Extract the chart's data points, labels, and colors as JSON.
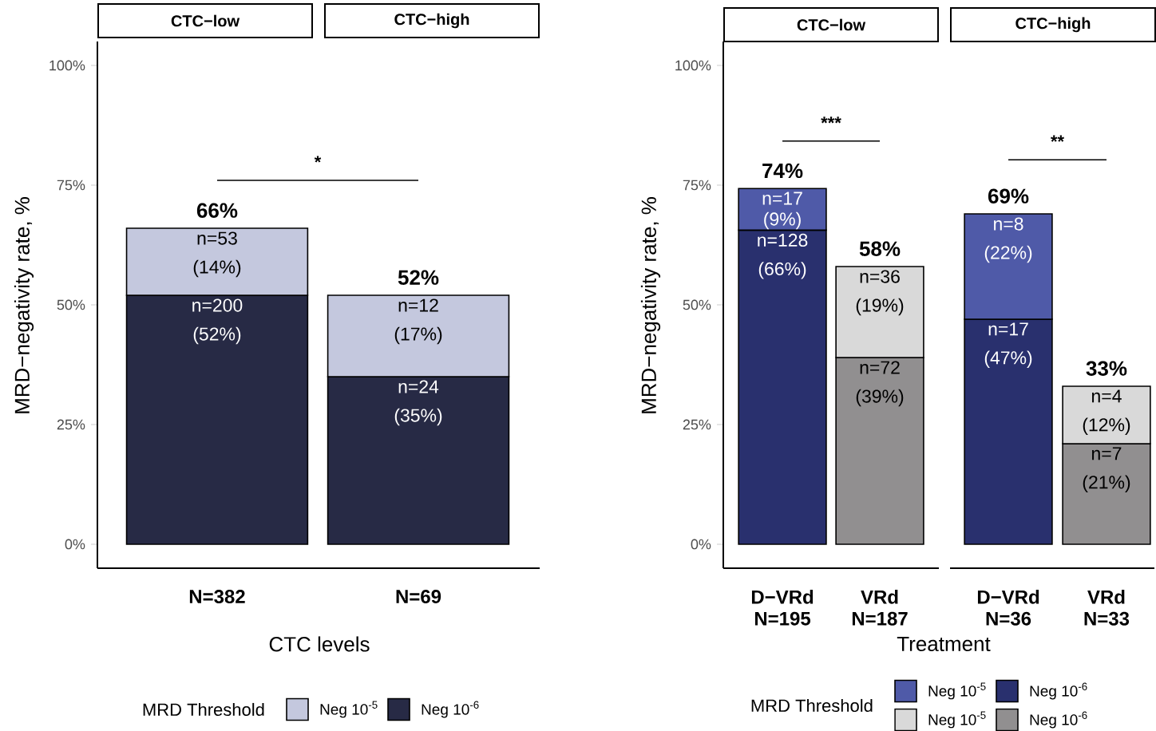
{
  "chart_data": [
    {
      "type": "bar",
      "stacked": true,
      "categories": [
        "N=382",
        "N=69"
      ],
      "xlabel": "CTC levels",
      "ylabel": "MRD−negativity rate, %",
      "ylim": [
        -5,
        105
      ],
      "yticks": [
        {
          "value": 0,
          "label": "0%"
        },
        {
          "value": 25,
          "label": "25%"
        },
        {
          "value": 50,
          "label": "50%"
        },
        {
          "value": 75,
          "label": "75%"
        },
        {
          "value": 100,
          "label": "100%"
        }
      ],
      "legend": "bottom",
      "legend_title": "MRD Threshold",
      "series": [
        {
          "name": "Neg 10$^{-6}$",
          "color": "#272a45",
          "values": [
            52,
            35
          ],
          "value_labels": [
            "n=200 (52%)",
            "n=24 (35%)"
          ]
        },
        {
          "name": "Neg 10$^{-5}$",
          "color": "#c4c8de",
          "values": [
            14,
            17
          ],
          "value_labels": [
            "n=53 (14%)",
            "n=12 (17%)"
          ]
        }
      ],
      "totals": [
        "66%",
        "52%"
      ],
      "annotations": [
        "CTC−low",
        "CTC−high",
        "*"
      ]
    },
    {
      "type": "bar",
      "stacked": true,
      "categories": [
        "D−VRd N=195",
        "VRd N=187",
        "D−VRd N=36",
        "VRd N=33"
      ],
      "xlabel": "Treatment",
      "ylabel": "MRD−negativity rate, %",
      "ylim": [
        -5,
        105
      ],
      "yticks": [
        {
          "value": 0,
          "label": "0%"
        },
        {
          "value": 25,
          "label": "25%"
        },
        {
          "value": 50,
          "label": "50%"
        },
        {
          "value": 75,
          "label": "75%"
        },
        {
          "value": 100,
          "label": "100%"
        }
      ],
      "legend": "bottom",
      "legend_title": "MRD Threshold",
      "series": [
        {
          "name": "Neg 10$^{-6}$",
          "colors": [
            "#29306e",
            "#918f90",
            "#29306e",
            "#918f90"
          ],
          "values": [
            65.6,
            39,
            47,
            21
          ],
          "value_labels": [
            "n=128 (66%)",
            "n=72 (39%)",
            "n=17 (47%)",
            "n=7 (21%)"
          ]
        },
        {
          "name": "Neg 10$^{-5}$",
          "colors": [
            "#4f5aa8",
            "#d9d9d9",
            "#4f5aa8",
            "#d9d9d9"
          ],
          "values": [
            8.7,
            19,
            22,
            12
          ],
          "value_labels": [
            "n=17 (9%)",
            "n=36 (19%)",
            "n=8 (22%)",
            "n=4 (12%)"
          ]
        }
      ],
      "totals": [
        "74%",
        "58%",
        "69%",
        "33%"
      ],
      "annotations": [
        "CTC−low",
        "CTC−high",
        "***",
        "**"
      ]
    }
  ]
}
